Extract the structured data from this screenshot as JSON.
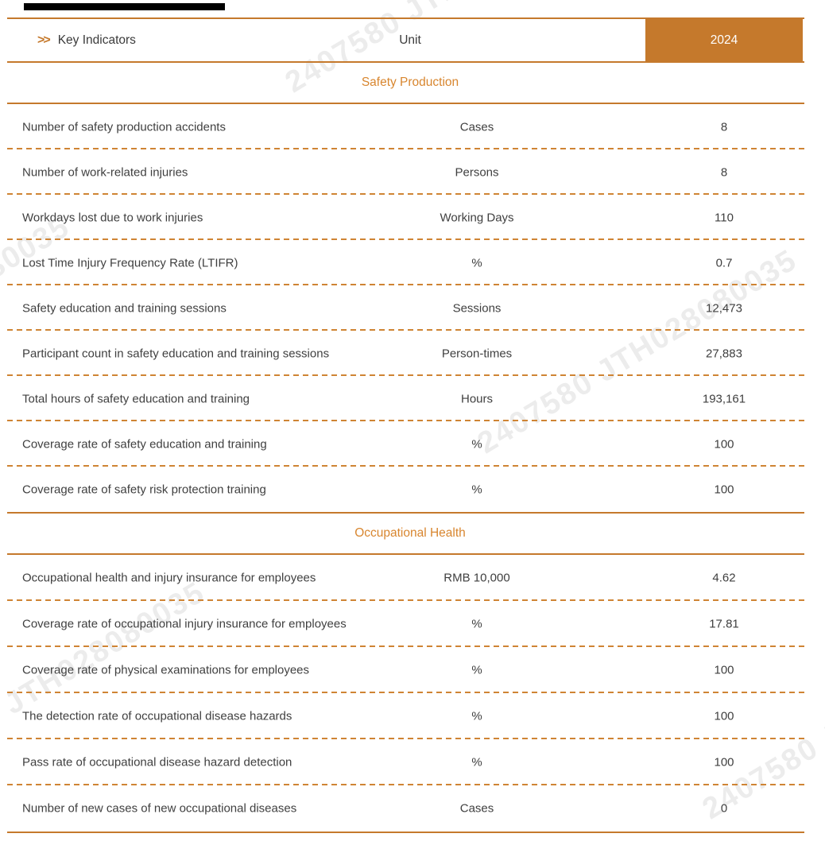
{
  "colors": {
    "accent": "#c5792c",
    "accent_dash": "#cf8434",
    "section_title": "#d8862f",
    "text": "#3f3f3f",
    "year_text": "#ffffff",
    "watermark": "#ececec",
    "redaction": "#000000"
  },
  "watermark": {
    "text": "2407580 JTH028080035"
  },
  "header": {
    "chevron": ">>",
    "title": "Key Indicators",
    "unit_label": "Unit",
    "year": "2024"
  },
  "sections": [
    {
      "title": "Safety Production",
      "rows": [
        {
          "indicator": "Number of safety production accidents",
          "unit": "Cases",
          "value": "8"
        },
        {
          "indicator": "Number of work-related injuries",
          "unit": "Persons",
          "value": "8"
        },
        {
          "indicator": "Workdays lost due to work injuries",
          "unit": "Working Days",
          "value": "110"
        },
        {
          "indicator": "Lost Time Injury Frequency Rate (LTIFR)",
          "unit": "%",
          "value": "0.7"
        },
        {
          "indicator": "Safety education and training sessions",
          "unit": "Sessions",
          "value": "12,473"
        },
        {
          "indicator": "Participant count in safety education and training sessions",
          "unit": "Person-times",
          "value": "27,883"
        },
        {
          "indicator": "Total hours of safety education and training",
          "unit": "Hours",
          "value": "193,161"
        },
        {
          "indicator": "Coverage rate of safety education and training",
          "unit": "%",
          "value": "100"
        },
        {
          "indicator": "Coverage rate of safety risk protection training",
          "unit": "%",
          "value": "100"
        }
      ]
    },
    {
      "title": "Occupational Health",
      "rows": [
        {
          "indicator": "Occupational health and injury insurance for employees",
          "unit": "RMB 10,000",
          "value": "4.62"
        },
        {
          "indicator": "Coverage rate of occupational injury insurance for employees",
          "unit": "%",
          "value": "17.81"
        },
        {
          "indicator": "Coverage rate of physical examinations for employees",
          "unit": "%",
          "value": "100"
        },
        {
          "indicator": "The detection rate of occupational disease hazards",
          "unit": "%",
          "value": "100"
        },
        {
          "indicator": "Pass rate of occupational disease hazard detection",
          "unit": "%",
          "value": "100"
        },
        {
          "indicator": "Number of new cases of new occupational diseases",
          "unit": "Cases",
          "value": "0"
        }
      ]
    }
  ]
}
